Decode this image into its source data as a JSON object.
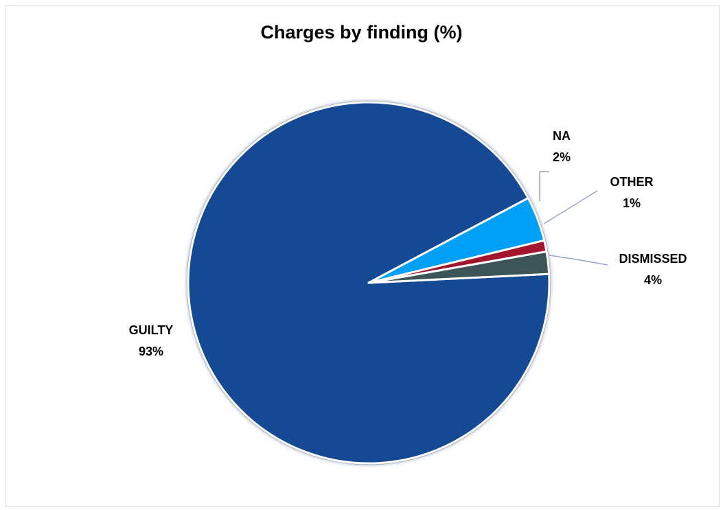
{
  "chart_data": {
    "type": "pie",
    "title": "Charges by finding (%)",
    "slices": [
      {
        "label": "GUILTY",
        "value": 93,
        "display": "93%",
        "color": "#144a94"
      },
      {
        "label": "NA",
        "value": 2,
        "display": "2%",
        "color": "#3d5558"
      },
      {
        "label": "OTHER",
        "value": 1,
        "display": "1%",
        "color": "#a3132e"
      },
      {
        "label": "DISMISSED",
        "value": 4,
        "display": "4%",
        "color": "#00a0f7"
      }
    ],
    "legend": "none"
  }
}
